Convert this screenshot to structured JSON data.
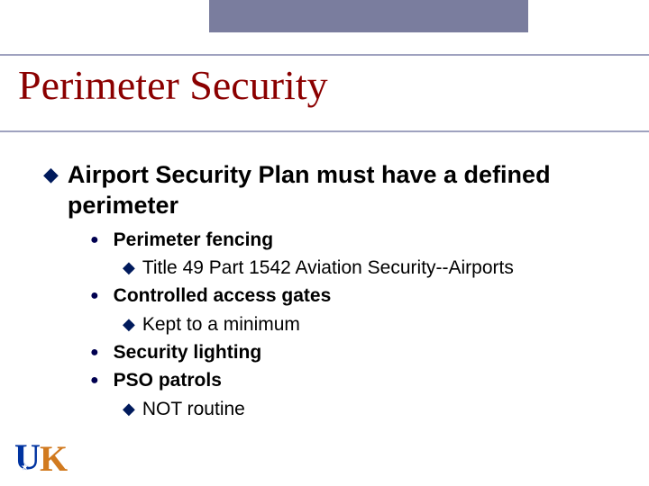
{
  "colors": {
    "title": "#8b0000",
    "rule": "#9fa2bf",
    "topbar": "#7a7d9e",
    "diamond_bullet": "#001a5c",
    "dot_bullet": "#000050",
    "logo_u": "#0033a0",
    "logo_k": "#d17a1f",
    "background": "#ffffff",
    "text": "#000000"
  },
  "fontsizes": {
    "title_pt": 34,
    "lvl1_pt": 20,
    "lvl2_pt": 16,
    "lvl3_pt": 16
  },
  "title": "Perimeter Security",
  "bullets": {
    "lvl1_glyph": "◆",
    "lvl2_glyph": "●",
    "lvl3_glyph": "◆"
  },
  "content": {
    "main": "Airport Security Plan must have a defined perimeter",
    "items": [
      {
        "label": "Perimeter fencing",
        "sub": "Title 49 Part 1542 Aviation Security--Airports"
      },
      {
        "label": "Controlled access gates",
        "sub": "Kept to a minimum"
      },
      {
        "label": "Security lighting"
      },
      {
        "label": "PSO patrols",
        "sub": "NOT routine"
      }
    ]
  },
  "logo": {
    "u": "U",
    "k": "K",
    "star": "★"
  }
}
